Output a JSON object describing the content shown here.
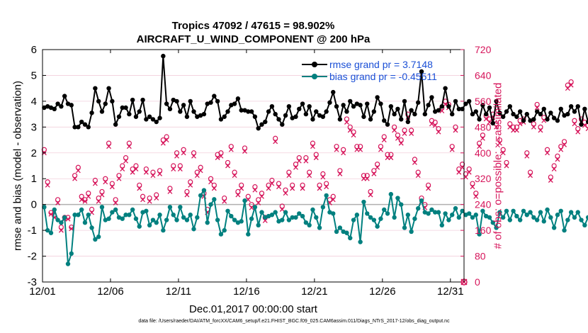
{
  "chart_data": {
    "type": "line",
    "title": "Tropics 47092 / 47615 = 98.902%",
    "subtitle": "AIRCRAFT_U_WIND_COMPONENT @ 200 hPa",
    "xlabel": "Dec.01,2017 00:00:00 start",
    "ylabel": "rmse and bias (model - observation)",
    "ylabel_right": "# of obs: o=possible; ×=assimilated",
    "footnote": "data file: /Users/raeder/DAI/ATM_forcXX/CAM6_setup/f.e21.FHIST_BGC.f09_025.CAM6assim.011/Diags_NTrS_2017-12/obs_diag_output.nc",
    "x_ticks": [
      "12/01",
      "12/06",
      "12/11",
      "12/16",
      "12/21",
      "12/26",
      "12/31"
    ],
    "x_tick_days": [
      0,
      5,
      10,
      15,
      20,
      25,
      30
    ],
    "xlim": [
      0,
      31
    ],
    "ylim": [
      -3,
      6
    ],
    "y_ticks": [
      "-3",
      "-2",
      "-1",
      "0",
      "1",
      "2",
      "3",
      "4",
      "5",
      "6"
    ],
    "ylim_right": [
      0,
      720
    ],
    "y2_ticks": [
      "0",
      "80",
      "160",
      "240",
      "320",
      "400",
      "480",
      "560",
      "640",
      "720"
    ],
    "legend": [
      "rmse grand pr = 3.7148",
      "bias grand pr = -0.45511"
    ],
    "legend_position": "top-right",
    "colors": {
      "rmse": "#000000",
      "bias": "#00807f",
      "counts": "#d6145a",
      "zero_line": "#b0b0b0",
      "legend_text": "#1a4fd6"
    },
    "time_step_days": 0.25,
    "series": [
      {
        "name": "rmse",
        "values": [
          3.75,
          3.8,
          3.75,
          3.7,
          3.9,
          3.8,
          4.2,
          3.9,
          3.85,
          3.0,
          3.0,
          3.2,
          3.1,
          3.0,
          3.55,
          4.5,
          4.0,
          3.6,
          3.9,
          4.5,
          4.0,
          3.1,
          3.4,
          3.75,
          3.75,
          3.5,
          4.05,
          3.4,
          3.6,
          4.05,
          3.3,
          3.4,
          3.3,
          3.2,
          3.35,
          5.75,
          3.9,
          3.7,
          4.05,
          4.0,
          3.6,
          3.85,
          3.4,
          4.0,
          3.6,
          3.4,
          3.45,
          3.5,
          3.9,
          3.95,
          4.2,
          4.0,
          3.3,
          3.4,
          3.6,
          3.85,
          3.9,
          4.1,
          3.65,
          3.65,
          3.6,
          3.6,
          3.4,
          2.95,
          3.1,
          3.2,
          3.6,
          3.8,
          3.5,
          3.3,
          3.1,
          3.45,
          3.8,
          3.35,
          3.4,
          3.7,
          3.9,
          3.5,
          3.8,
          3.3,
          3.6,
          3.45,
          3.4,
          3.6,
          3.95,
          4.35,
          3.8,
          3.3,
          3.85,
          3.6,
          4.0,
          3.8,
          3.9,
          3.85,
          3.4,
          3.9,
          3.3,
          3.6,
          4.15,
          3.9,
          3.25,
          3.1,
          3.8,
          3.5,
          3.7,
          3.3,
          4.0,
          3.2,
          3.65,
          3.5,
          3.95,
          5.15,
          3.5,
          3.85,
          4.15,
          3.6,
          3.65,
          3.8,
          4.5,
          3.8,
          3.5,
          4.0,
          3.7,
          3.7,
          3.9,
          4.0,
          3.5,
          3.6,
          3.3,
          3.85,
          3.5,
          3.75,
          3.15,
          4.0,
          3.55,
          3.4,
          3.6,
          3.8,
          3.5,
          3.4,
          3.6,
          3.25,
          3.5,
          3.25,
          3.3,
          3.6,
          3.5,
          3.7,
          3.3,
          3.55,
          3.35,
          3.25,
          3.7,
          3.45,
          3.5,
          3.8,
          3.6,
          3.8,
          3.1,
          3.7,
          3.2,
          3.55,
          3.0,
          3.35,
          3.2,
          3.4,
          3.6,
          3.55,
          3.7,
          3.4,
          3.8,
          3.55,
          4.0,
          3.35,
          3.05,
          3.35,
          3.25,
          3.2
        ]
      },
      {
        "name": "bias",
        "values": [
          -0.1,
          -1.0,
          -1.1,
          -0.2,
          -0.6,
          -0.7,
          -0.5,
          -2.3,
          -1.9,
          -0.4,
          -0.4,
          -0.2,
          -0.7,
          -0.4,
          -0.9,
          -1.35,
          -1.25,
          -0.1,
          -0.6,
          -0.55,
          -0.3,
          -0.2,
          -0.5,
          -0.55,
          -0.4,
          -0.4,
          -0.2,
          -0.55,
          -0.85,
          -0.3,
          -0.25,
          -0.8,
          -0.6,
          -0.7,
          -0.4,
          -1.0,
          -0.6,
          -0.1,
          -0.4,
          -0.6,
          -0.1,
          -0.5,
          -0.6,
          -0.4,
          -0.95,
          -0.5,
          0.35,
          0.55,
          -0.7,
          0.0,
          0.2,
          -0.6,
          -1.15,
          -1.0,
          -0.25,
          -0.45,
          -0.6,
          -0.7,
          -0.65,
          0.15,
          -1.15,
          -0.55,
          -0.1,
          -0.8,
          -0.3,
          -0.5,
          -0.45,
          -0.4,
          -0.3,
          -0.65,
          -0.6,
          -0.3,
          -0.6,
          -0.5,
          -0.5,
          -0.35,
          -0.45,
          -0.7,
          -0.8,
          -0.2,
          -0.5,
          -0.9,
          -0.1,
          0.35,
          -0.3,
          -0.35,
          -1.05,
          -0.9,
          -1.05,
          -1.1,
          -1.3,
          -0.6,
          -0.4,
          -1.45,
          0.1,
          -0.35,
          -0.5,
          -0.6,
          -0.85,
          -0.55,
          -0.2,
          -0.35,
          0.4,
          -0.5,
          0.25,
          0.0,
          -0.9,
          -0.4,
          -1.05,
          -0.55,
          -0.15,
          0.15,
          -0.3,
          -0.35,
          -0.2,
          -0.3,
          -0.3,
          -0.8,
          -0.35,
          -0.6,
          -0.4,
          -0.15,
          -0.5,
          -0.25,
          -0.4,
          -0.35,
          -0.5,
          -0.4,
          -1.15,
          -0.25,
          -0.45,
          -0.5,
          -0.7,
          -0.9,
          -0.3,
          -0.5,
          -0.25,
          -0.6,
          -0.25,
          -0.45,
          -0.6,
          -0.25,
          -0.4,
          -0.3,
          -0.5,
          -0.6,
          -0.3,
          -0.65,
          -0.2,
          -0.5,
          -0.9,
          -0.4,
          -0.25,
          -1.0,
          -0.6,
          -0.3,
          -0.5,
          -0.3,
          -0.6,
          -0.8,
          -0.5,
          0.05,
          -0.2,
          0.1,
          0.0,
          -0.15,
          0.05,
          -0.3,
          -0.2,
          0.05,
          -0.1,
          -0.05,
          -0.1,
          -0.25,
          0.0,
          -0.05,
          -0.1,
          -0.3
        ]
      },
      {
        "name": "count_possible",
        "values": [
          410,
          310,
          215,
          205,
          255,
          170,
          200,
          200,
          170,
          330,
          355,
          265,
          255,
          275,
          225,
          315,
          260,
          280,
          320,
          430,
          305,
          255,
          330,
          360,
          385,
          430,
          350,
          360,
          300,
          265,
          350,
          260,
          340,
          270,
          345,
          440,
          450,
          290,
          360,
          400,
          360,
          410,
          280,
          310,
          400,
          340,
          355,
          275,
          225,
          320,
          300,
          395,
          400,
          260,
          370,
          420,
          340,
          280,
          300,
          415,
          265,
          240,
          295,
          255,
          275,
          200,
          300,
          315,
          445,
          305,
          235,
          285,
          340,
          300,
          365,
          385,
          300,
          385,
          340,
          430,
          395,
          300,
          335,
          305,
          255,
          265,
          420,
          345,
          410,
          505,
          480,
          465,
          420,
          420,
          330,
          330,
          280,
          345,
          365,
          420,
          450,
          395,
          395,
          480,
          455,
          440,
          470,
          520,
          470,
          380,
          340,
          260,
          240,
          300,
          500,
          495,
          475,
          540,
          560,
          550,
          420,
          480,
          350,
          365,
          335,
          350,
          305,
          275,
          430,
          455,
          515,
          505,
          520,
          490,
          440,
          410,
          370,
          490,
          480,
          480,
          500,
          505,
          400,
          340,
          490,
          550,
          480,
          510,
          410,
          325,
          360,
          390,
          420,
          435,
          610,
          620,
          500,
          475,
          505,
          495,
          485,
          425,
          400,
          370,
          440,
          490,
          510,
          540,
          580,
          500,
          455,
          430,
          420,
          370,
          280,
          250
        ]
      },
      {
        "name": "count_assimilated",
        "values": [
          400,
          300,
          210,
          200,
          245,
          160,
          195,
          195,
          165,
          320,
          345,
          255,
          250,
          265,
          215,
          305,
          250,
          270,
          310,
          420,
          295,
          245,
          320,
          350,
          375,
          420,
          340,
          350,
          290,
          255,
          340,
          250,
          330,
          260,
          335,
          430,
          440,
          280,
          350,
          390,
          350,
          400,
          270,
          300,
          390,
          330,
          345,
          265,
          215,
          310,
          290,
          385,
          390,
          250,
          360,
          410,
          330,
          270,
          290,
          405,
          255,
          230,
          285,
          245,
          265,
          190,
          290,
          305,
          435,
          295,
          225,
          275,
          330,
          290,
          355,
          375,
          290,
          375,
          330,
          420,
          385,
          290,
          325,
          295,
          245,
          255,
          410,
          335,
          400,
          495,
          470,
          455,
          410,
          410,
          320,
          320,
          270,
          335,
          355,
          410,
          440,
          385,
          385,
          470,
          445,
          430,
          460,
          510,
          460,
          370,
          330,
          250,
          230,
          290,
          490,
          485,
          465,
          530,
          550,
          540,
          410,
          470,
          340,
          355,
          325,
          340,
          295,
          265,
          420,
          445,
          505,
          495,
          510,
          480,
          430,
          400,
          360,
          480,
          470,
          470,
          490,
          495,
          390,
          330,
          480,
          540,
          470,
          500,
          400,
          315,
          350,
          380,
          410,
          425,
          600,
          610,
          490,
          465,
          495,
          485,
          475,
          415,
          390,
          360,
          430,
          480,
          500,
          530,
          570,
          490,
          445,
          420,
          410,
          360,
          270,
          240
        ]
      }
    ]
  }
}
